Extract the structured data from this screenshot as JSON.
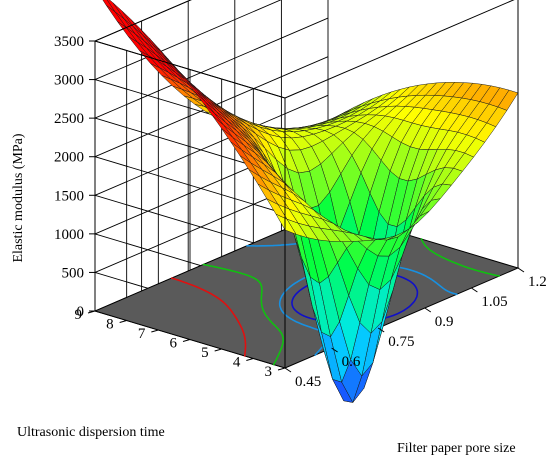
{
  "chart_data": {
    "type": "surface3d",
    "title": "",
    "zlabel": "Elastic modulus (MPa)",
    "xlabel": "Filter paper pore size",
    "ylabel": "Ultrasonic dispersion time",
    "x_ticks": [
      "0.45",
      "0.6",
      "0.75",
      "0.9",
      "1.05",
      "1.2"
    ],
    "y_ticks": [
      "3",
      "4",
      "5",
      "6",
      "7",
      "8",
      "9"
    ],
    "z_ticks": [
      "0",
      "500",
      "1000",
      "1500",
      "2000",
      "2500",
      "3000",
      "3500"
    ],
    "xlim": [
      0.45,
      1.2
    ],
    "ylim": [
      3,
      9
    ],
    "zlim": [
      0,
      3500
    ],
    "corner_values": [
      {
        "x": 0.45,
        "y": 9,
        "z": 2550
      },
      {
        "x": 0.45,
        "y": 3,
        "z": 1150
      },
      {
        "x": 1.2,
        "y": 9,
        "z": 1480
      },
      {
        "x": 1.2,
        "y": 3,
        "z": 1550
      }
    ],
    "peak": {
      "x": 0.5,
      "y": 8.2,
      "z": 2950
    },
    "minimum": {
      "x": 0.85,
      "y": 4.9,
      "z": -1500
    },
    "floor_contours": [
      {
        "color": "#e01010"
      },
      {
        "color": "#10c010"
      },
      {
        "color": "#1890e0"
      },
      {
        "color": "#1010c8"
      }
    ],
    "colormap": [
      "#2020ff",
      "#00e5ff",
      "#00ff40",
      "#ffff00",
      "#ff0000"
    ]
  }
}
